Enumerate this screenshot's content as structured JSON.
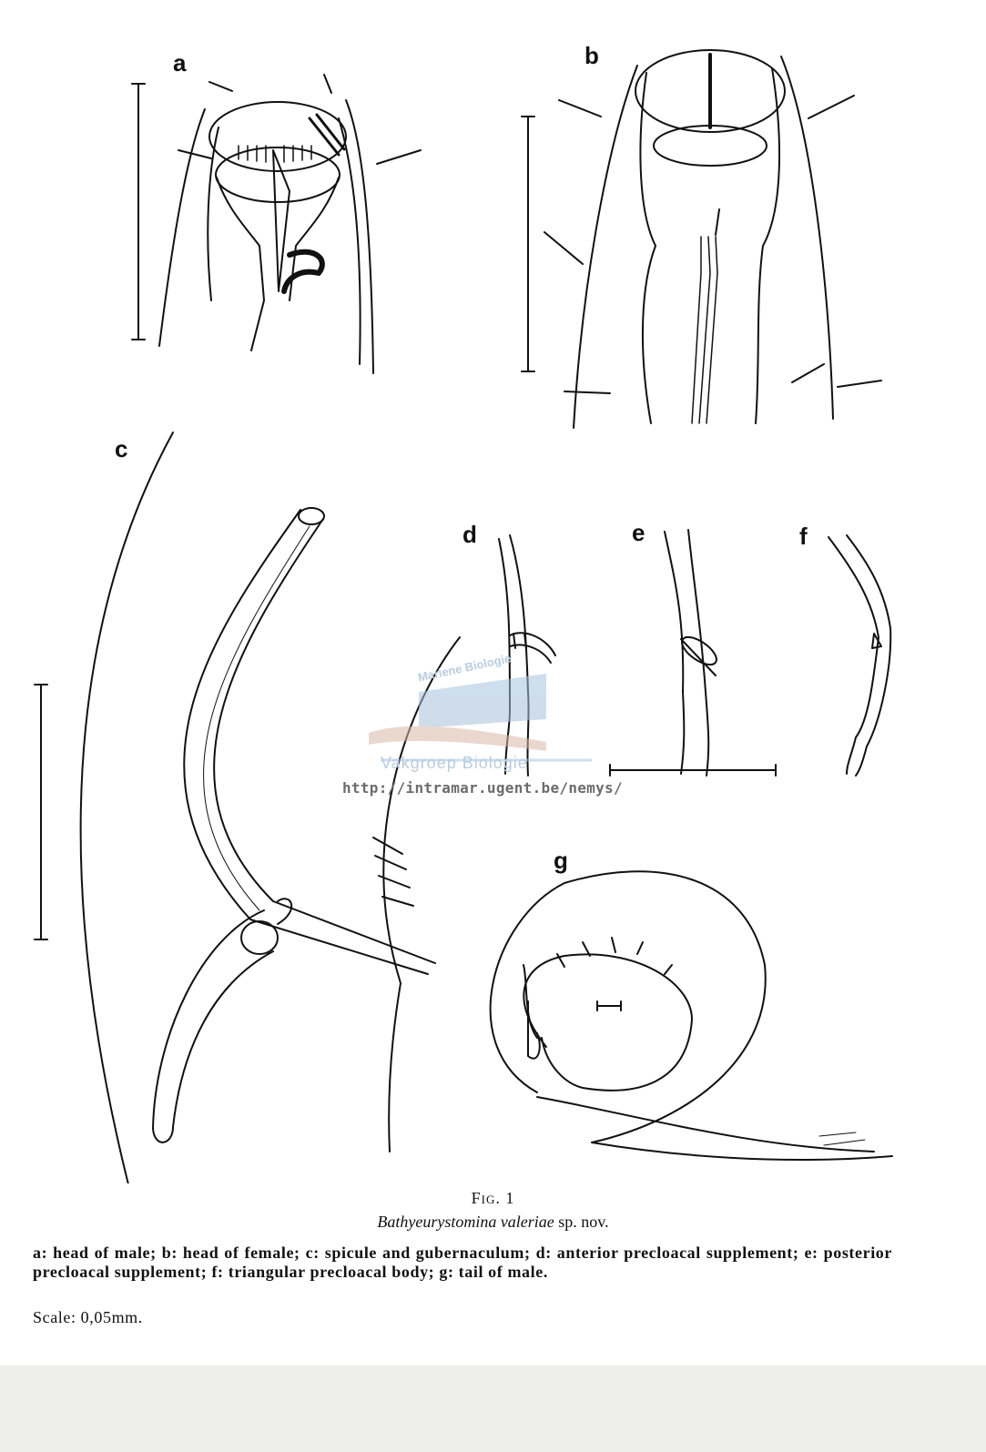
{
  "panels": {
    "a": "a",
    "b": "b",
    "c": "c",
    "d": "d",
    "e": "e",
    "f": "f",
    "g": "g"
  },
  "watermark": {
    "arc_text": "Mariene Biologie",
    "department": "Vakgroep Biologie",
    "url": "http://intramar.ugent.be/nemys/"
  },
  "figure_caption": {
    "number": "Fig. 1",
    "species": "Bathyeurystomina valeriae",
    "species_suffix": " sp. nov.",
    "legend": "a: head of male; b: head of female; c: spicule and gubernaculum; d: anterior precloacal supplement; e: posterior precloacal supplement; f: triangular precloacal body; g: tail of male.",
    "scale": "Scale: 0,05mm."
  },
  "colors": {
    "ink": "#111111",
    "watermark_blue": "#b9cde0",
    "watermark_url": "#6c6c6c"
  }
}
